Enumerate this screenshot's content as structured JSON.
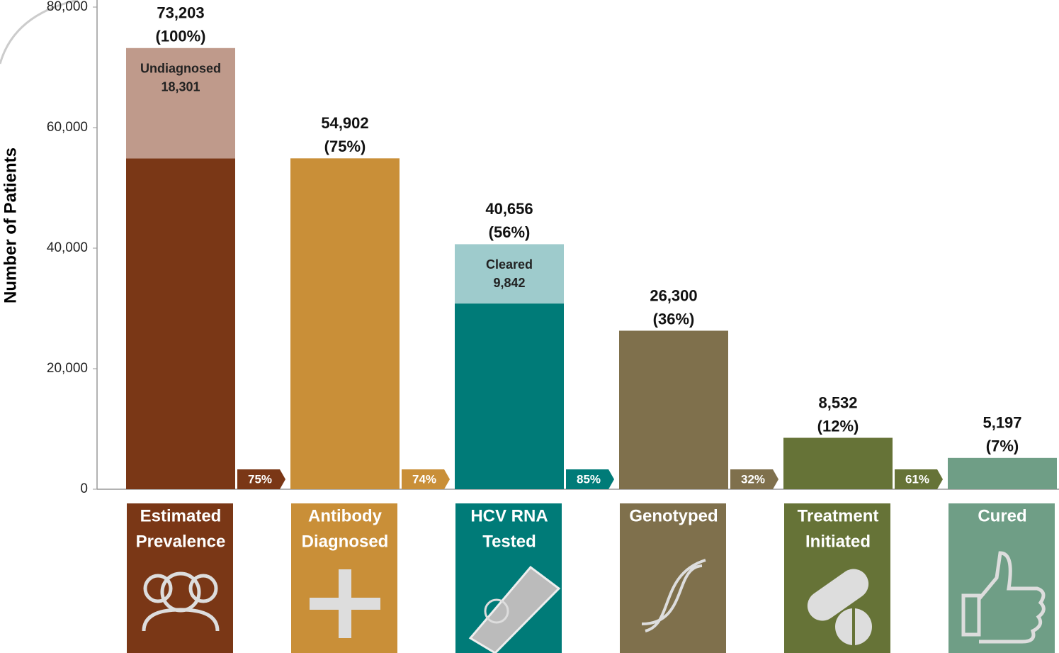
{
  "chart_data": {
    "type": "bar",
    "y_axis_label": "Number of Patients",
    "ylim": [
      0,
      80000
    ],
    "yticks": [
      {
        "value": 0,
        "label": "0"
      },
      {
        "value": 20000,
        "label": "20,000"
      },
      {
        "value": 40000,
        "label": "40,000"
      },
      {
        "value": 60000,
        "label": "60,000"
      },
      {
        "value": 80000,
        "label": "80,000"
      }
    ],
    "bars": [
      {
        "category": [
          "Estimated",
          "Prevalence"
        ],
        "total": 73203,
        "total_label": "73,203",
        "percent_label": "(100%)",
        "color": "#7a3716",
        "segments": [
          {
            "value": 54902,
            "color": "#7a3716"
          },
          {
            "value": 18301,
            "color": "#bf9a8b",
            "name": "Undiagnosed",
            "value_label": "18,301"
          }
        ]
      },
      {
        "category": [
          "Antibody",
          "Diagnosed"
        ],
        "total": 54902,
        "total_label": "54,902",
        "percent_label": "(75%)",
        "color": "#c98f38",
        "segments": [
          {
            "value": 54902,
            "color": "#c98f38"
          }
        ]
      },
      {
        "category": [
          "HCV RNA",
          "Tested"
        ],
        "total": 40656,
        "total_label": "40,656",
        "percent_label": "(56%)",
        "color": "#007b78",
        "segments": [
          {
            "value": 30814,
            "color": "#007b78"
          },
          {
            "value": 9842,
            "color": "#9ecbcc",
            "name": "Cleared",
            "value_label": "9,842"
          }
        ]
      },
      {
        "category": [
          "Genotyped"
        ],
        "total": 26300,
        "total_label": "26,300",
        "percent_label": "(36%)",
        "color": "#7f704c",
        "segments": [
          {
            "value": 26300,
            "color": "#7f704c"
          }
        ]
      },
      {
        "category": [
          "Treatment",
          "Initiated"
        ],
        "total": 8532,
        "total_label": "8,532",
        "percent_label": "(12%)",
        "color": "#667337",
        "segments": [
          {
            "value": 8532,
            "color": "#667337"
          }
        ]
      },
      {
        "category": [
          "Cured"
        ],
        "total": 5197,
        "total_label": "5,197",
        "percent_label": "(7%)",
        "color": "#6f9e86",
        "segments": [
          {
            "value": 5197,
            "color": "#6f9e86"
          }
        ]
      }
    ],
    "conversions": [
      "75%",
      "74%",
      "85%",
      "32%",
      "61%"
    ]
  }
}
